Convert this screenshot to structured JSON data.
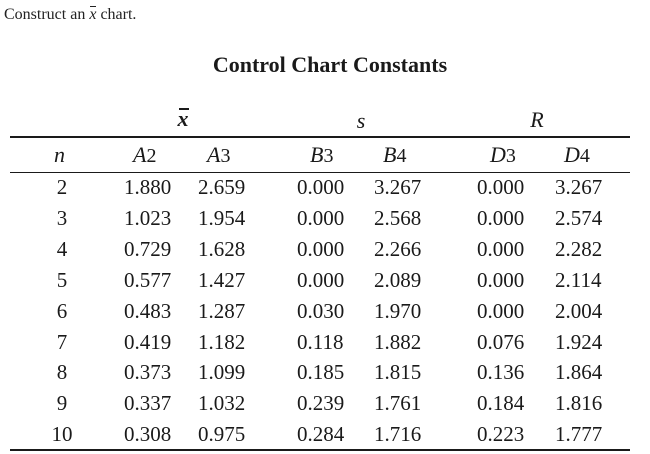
{
  "prompt": {
    "prefix": "Construct an",
    "symbol": "x",
    "suffix": "chart."
  },
  "title": "Control Chart Constants",
  "groups": {
    "xbar": "x",
    "s": "s",
    "r": "R"
  },
  "columns": [
    {
      "letter": "n",
      "sub": ""
    },
    {
      "letter": "A",
      "sub": "2"
    },
    {
      "letter": "A",
      "sub": "3"
    },
    {
      "letter": "B",
      "sub": "3"
    },
    {
      "letter": "B",
      "sub": "4"
    },
    {
      "letter": "D",
      "sub": "3"
    },
    {
      "letter": "D",
      "sub": "4"
    }
  ],
  "rows": [
    [
      "2",
      "1.880",
      "2.659",
      "0.000",
      "3.267",
      "0.000",
      "3.267"
    ],
    [
      "3",
      "1.023",
      "1.954",
      "0.000",
      "2.568",
      "0.000",
      "2.574"
    ],
    [
      "4",
      "0.729",
      "1.628",
      "0.000",
      "2.266",
      "0.000",
      "2.282"
    ],
    [
      "5",
      "0.577",
      "1.427",
      "0.000",
      "2.089",
      "0.000",
      "2.114"
    ],
    [
      "6",
      "0.483",
      "1.287",
      "0.030",
      "1.970",
      "0.000",
      "2.004"
    ],
    [
      "7",
      "0.419",
      "1.182",
      "0.118",
      "1.882",
      "0.076",
      "1.924"
    ],
    [
      "8",
      "0.373",
      "1.099",
      "0.185",
      "1.815",
      "0.136",
      "1.864"
    ],
    [
      "9",
      "0.337",
      "1.032",
      "0.239",
      "1.761",
      "0.184",
      "1.816"
    ],
    [
      "10",
      "0.308",
      "0.975",
      "0.284",
      "1.716",
      "0.223",
      "1.777"
    ]
  ]
}
